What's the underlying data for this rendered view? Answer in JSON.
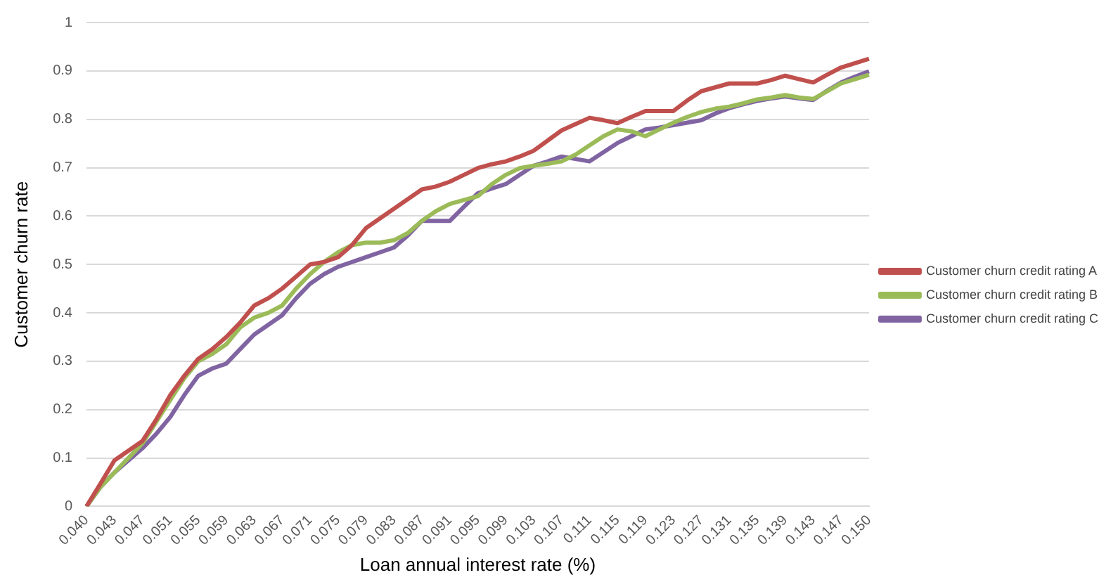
{
  "chart_data": {
    "type": "line",
    "xlabel": "Loan annual interest rate (%)",
    "ylabel": "Customer churn rate",
    "categories": [
      "0.040",
      null,
      "0.043",
      null,
      "0.047",
      null,
      "0.051",
      null,
      "0.055",
      null,
      "0.059",
      null,
      "0.063",
      null,
      "0.067",
      null,
      "0.071",
      null,
      "0.075",
      null,
      "0.079",
      null,
      "0.083",
      null,
      "0.087",
      null,
      "0.091",
      null,
      "0.095",
      null,
      "0.099",
      null,
      "0.103",
      null,
      "0.107",
      null,
      "0.111",
      null,
      "0.115",
      null,
      "0.119",
      null,
      "0.123",
      null,
      "0.127",
      null,
      "0.131",
      null,
      "0.135",
      null,
      "0.139",
      null,
      "0.143",
      null,
      "0.147",
      null,
      "0.150"
    ],
    "series": [
      {
        "name": "Customer churn credit rating A",
        "color": "#c0504d",
        "values": [
          0,
          0.047,
          0.095,
          0.115,
          0.135,
          0.18,
          0.23,
          0.27,
          0.305,
          0.325,
          0.35,
          0.38,
          0.415,
          0.43,
          0.45,
          0.475,
          0.5,
          0.505,
          0.515,
          0.54,
          0.575,
          0.595,
          0.615,
          0.635,
          0.655,
          0.661,
          0.671,
          0.685,
          0.699,
          0.707,
          0.713,
          0.723,
          0.735,
          0.756,
          0.777,
          0.79,
          0.803,
          0.798,
          0.792,
          0.805,
          0.817,
          0.817,
          0.817,
          0.839,
          0.858,
          0.866,
          0.874,
          0.874,
          0.874,
          0.881,
          0.89,
          0.883,
          0.876,
          0.892,
          0.907,
          0.916,
          0.925
        ]
      },
      {
        "name": "Customer churn credit rating B",
        "color": "#9bbb59",
        "values": [
          0,
          0.04,
          0.07,
          0.1,
          0.13,
          0.175,
          0.22,
          0.265,
          0.3,
          0.315,
          0.335,
          0.37,
          0.39,
          0.4,
          0.415,
          0.45,
          0.48,
          0.505,
          0.525,
          0.54,
          0.545,
          0.545,
          0.55,
          0.565,
          0.59,
          0.61,
          0.625,
          0.633,
          0.641,
          0.666,
          0.685,
          0.699,
          0.704,
          0.708,
          0.713,
          0.727,
          0.746,
          0.765,
          0.779,
          0.775,
          0.765,
          0.779,
          0.793,
          0.805,
          0.815,
          0.822,
          0.826,
          0.833,
          0.841,
          0.845,
          0.85,
          0.845,
          0.842,
          0.858,
          0.874,
          0.883,
          0.892
        ]
      },
      {
        "name": "Customer churn credit rating C",
        "color": "#8064a2",
        "values": [
          0,
          0.04,
          0.07,
          0.095,
          0.12,
          0.15,
          0.185,
          0.23,
          0.27,
          0.285,
          0.295,
          0.325,
          0.355,
          0.375,
          0.395,
          0.43,
          0.46,
          0.48,
          0.495,
          0.505,
          0.515,
          0.525,
          0.535,
          0.56,
          0.59,
          0.59,
          0.59,
          0.619,
          0.647,
          0.657,
          0.666,
          0.685,
          0.704,
          0.713,
          0.723,
          0.718,
          0.713,
          0.732,
          0.751,
          0.765,
          0.779,
          0.783,
          0.788,
          0.793,
          0.798,
          0.812,
          0.823,
          0.831,
          0.838,
          0.843,
          0.847,
          0.843,
          0.84,
          0.859,
          0.876,
          0.888,
          0.899
        ]
      }
    ],
    "ylim": [
      0,
      1
    ],
    "yticks": [
      0,
      0.1,
      0.2,
      0.3,
      0.4,
      0.5,
      0.6,
      0.7,
      0.8,
      0.9,
      1
    ],
    "grid": "y",
    "legend": "right",
    "marker": "none",
    "line_style": "solid"
  }
}
